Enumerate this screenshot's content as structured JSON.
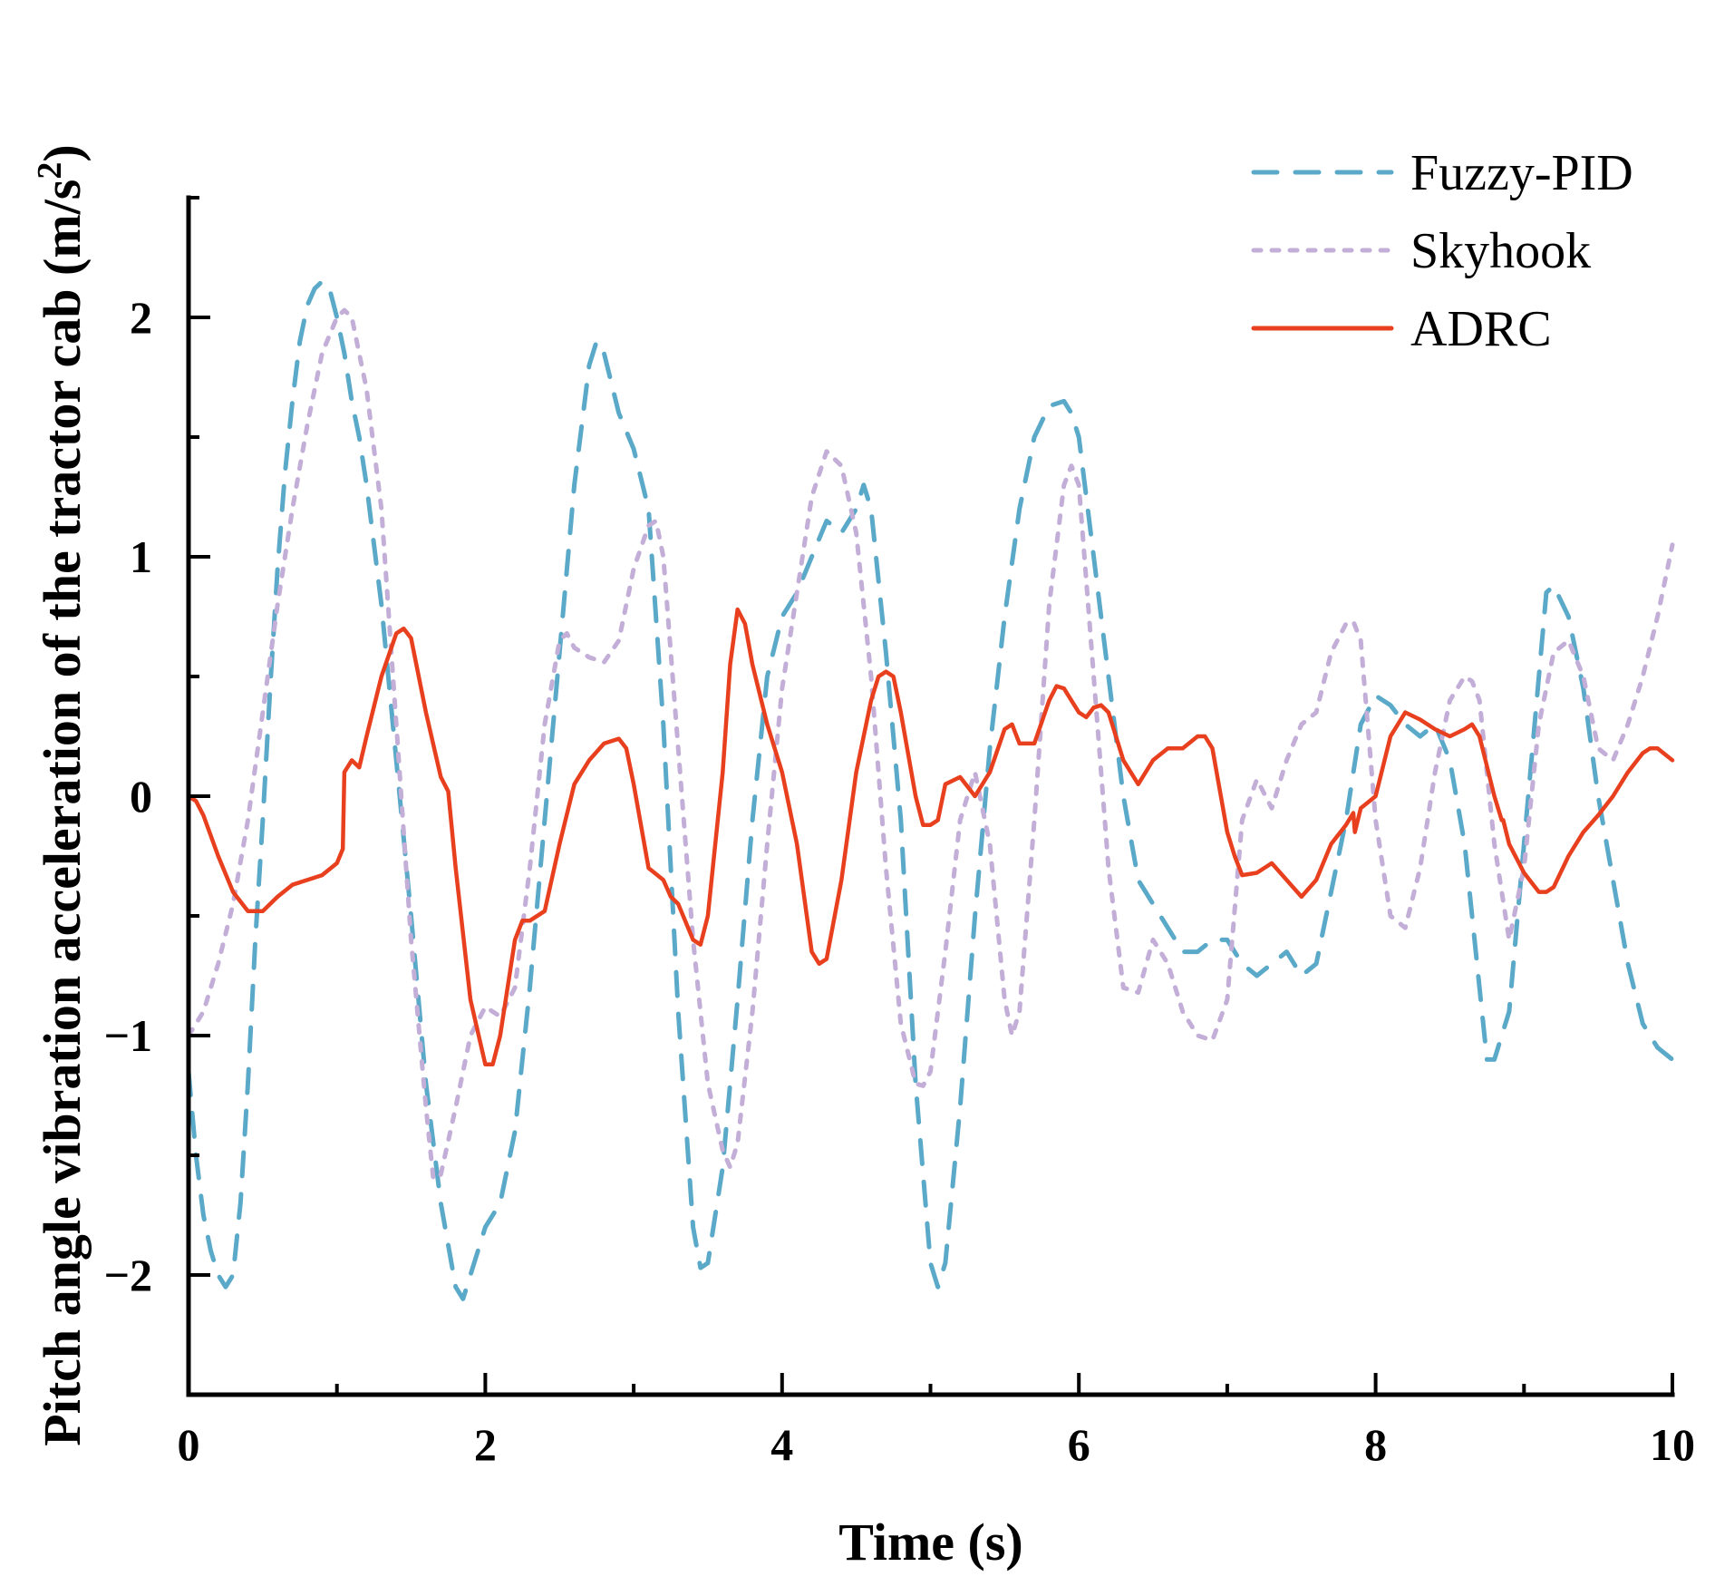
{
  "chart_data": {
    "type": "line",
    "title": "",
    "xlabel": "Time (s)",
    "ylabel_main": "Pitch angle vibration acceleration of the tractor cab (m/s",
    "ylabel_sup": "2",
    "ylabel_close": ")",
    "xlim": [
      0,
      10
    ],
    "ylim": [
      -2.5,
      2.5
    ],
    "xticks": [
      0,
      2,
      4,
      6,
      8,
      10
    ],
    "xtick_labels": [
      "0",
      "2",
      "4",
      "6",
      "8",
      "10"
    ],
    "xminor": [
      1,
      3,
      5,
      7,
      9
    ],
    "yticks": [
      -2,
      -1,
      0,
      1,
      2
    ],
    "ytick_labels": [
      "−2",
      "−1",
      "0",
      "1",
      "2"
    ],
    "yminor": [
      -2.5,
      -1.5,
      -0.5,
      0.5,
      1.5,
      2.5
    ],
    "grid": false,
    "legend_position": "top-right",
    "series": [
      {
        "name": "Fuzzy-PID",
        "color": "#5aa9c9",
        "style": "dashed",
        "x": [
          0,
          0.05,
          0.1,
          0.15,
          0.2,
          0.25,
          0.3,
          0.35,
          0.4,
          0.45,
          0.5,
          0.55,
          0.6,
          0.65,
          0.7,
          0.75,
          0.8,
          0.85,
          0.9,
          0.95,
          1.0,
          1.05,
          1.1,
          1.15,
          1.2,
          1.3,
          1.4,
          1.5,
          1.6,
          1.7,
          1.8,
          1.85,
          1.9,
          2.0,
          2.1,
          2.2,
          2.3,
          2.4,
          2.5,
          2.6,
          2.7,
          2.75,
          2.8,
          2.9,
          3.0,
          3.1,
          3.2,
          3.3,
          3.4,
          3.45,
          3.5,
          3.6,
          3.7,
          3.8,
          3.9,
          4.0,
          4.1,
          4.2,
          4.3,
          4.4,
          4.5,
          4.55,
          4.6,
          4.7,
          4.8,
          4.9,
          5.0,
          5.05,
          5.1,
          5.2,
          5.3,
          5.4,
          5.5,
          5.6,
          5.7,
          5.8,
          5.9,
          5.95,
          6.0,
          6.1,
          6.2,
          6.3,
          6.4,
          6.5,
          6.6,
          6.7,
          6.8,
          6.9,
          7.0,
          7.1,
          7.2,
          7.3,
          7.4,
          7.5,
          7.6,
          7.7,
          7.8,
          7.9,
          8.0,
          8.1,
          8.2,
          8.3,
          8.4,
          8.5,
          8.6,
          8.7,
          8.75,
          8.8,
          8.9,
          9.0,
          9.1,
          9.15,
          9.2,
          9.3,
          9.4,
          9.5,
          9.6,
          9.7,
          9.8,
          9.9,
          10.0
        ],
        "values": [
          -1.15,
          -1.5,
          -1.75,
          -1.9,
          -2.0,
          -2.05,
          -2.0,
          -1.7,
          -1.2,
          -0.6,
          -0.1,
          0.45,
          0.95,
          1.35,
          1.65,
          1.9,
          2.05,
          2.12,
          2.15,
          2.12,
          2.0,
          1.85,
          1.65,
          1.5,
          1.3,
          0.8,
          0.15,
          -0.5,
          -1.2,
          -1.7,
          -2.05,
          -2.1,
          -2.0,
          -1.8,
          -1.7,
          -1.4,
          -0.8,
          -0.1,
          0.6,
          1.3,
          1.8,
          1.9,
          1.85,
          1.6,
          1.45,
          1.2,
          0.3,
          -0.9,
          -1.8,
          -1.97,
          -1.95,
          -1.55,
          -0.85,
          -0.1,
          0.5,
          0.75,
          0.85,
          1.0,
          1.15,
          1.1,
          1.2,
          1.3,
          1.2,
          0.6,
          -0.1,
          -1.2,
          -1.95,
          -2.05,
          -1.95,
          -1.3,
          -0.5,
          0.2,
          0.75,
          1.2,
          1.5,
          1.63,
          1.65,
          1.6,
          1.5,
          1.0,
          0.5,
          0.0,
          -0.35,
          -0.45,
          -0.55,
          -0.65,
          -0.65,
          -0.6,
          -0.6,
          -0.7,
          -0.75,
          -0.7,
          -0.65,
          -0.75,
          -0.7,
          -0.4,
          -0.1,
          0.3,
          0.42,
          0.38,
          0.3,
          0.25,
          0.3,
          0.15,
          -0.2,
          -0.8,
          -1.1,
          -1.1,
          -0.9,
          -0.2,
          0.5,
          0.85,
          0.88,
          0.75,
          0.45,
          0.0,
          -0.35,
          -0.7,
          -0.95,
          -1.05,
          -1.1
        ]
      },
      {
        "name": "Skyhook",
        "color": "#c3aed8",
        "style": "dotted",
        "x": [
          0,
          0.1,
          0.2,
          0.3,
          0.4,
          0.5,
          0.6,
          0.7,
          0.8,
          0.9,
          1.0,
          1.05,
          1.1,
          1.2,
          1.3,
          1.4,
          1.5,
          1.6,
          1.65,
          1.7,
          1.8,
          1.9,
          2.0,
          2.1,
          2.2,
          2.3,
          2.4,
          2.5,
          2.55,
          2.6,
          2.7,
          2.8,
          2.9,
          3.0,
          3.1,
          3.15,
          3.2,
          3.3,
          3.4,
          3.5,
          3.6,
          3.65,
          3.7,
          3.8,
          3.9,
          4.0,
          4.1,
          4.2,
          4.3,
          4.4,
          4.5,
          4.6,
          4.7,
          4.8,
          4.9,
          4.95,
          5.0,
          5.1,
          5.2,
          5.3,
          5.4,
          5.5,
          5.55,
          5.6,
          5.7,
          5.8,
          5.9,
          5.95,
          6.0,
          6.1,
          6.2,
          6.3,
          6.4,
          6.5,
          6.6,
          6.7,
          6.8,
          6.9,
          7.0,
          7.1,
          7.2,
          7.3,
          7.4,
          7.5,
          7.6,
          7.7,
          7.8,
          7.85,
          7.9,
          8.0,
          8.1,
          8.2,
          8.3,
          8.4,
          8.5,
          8.6,
          8.65,
          8.7,
          8.8,
          8.9,
          9.0,
          9.1,
          9.2,
          9.3,
          9.4,
          9.5,
          9.6,
          9.7,
          9.8,
          9.9,
          10.0
        ],
        "values": [
          -1.0,
          -0.9,
          -0.7,
          -0.45,
          -0.1,
          0.35,
          0.8,
          1.2,
          1.55,
          1.85,
          2.0,
          2.03,
          2.0,
          1.7,
          1.2,
          0.3,
          -0.6,
          -1.3,
          -1.6,
          -1.58,
          -1.3,
          -1.0,
          -0.88,
          -0.92,
          -0.8,
          -0.3,
          0.3,
          0.65,
          0.68,
          0.62,
          0.58,
          0.56,
          0.65,
          0.95,
          1.13,
          1.15,
          1.0,
          0.2,
          -0.6,
          -1.2,
          -1.48,
          -1.55,
          -1.45,
          -0.9,
          -0.2,
          0.45,
          0.85,
          1.25,
          1.44,
          1.38,
          1.1,
          0.5,
          -0.3,
          -0.95,
          -1.2,
          -1.21,
          -1.15,
          -0.65,
          -0.1,
          0.1,
          -0.2,
          -0.85,
          -1.0,
          -0.9,
          -0.1,
          0.8,
          1.3,
          1.38,
          1.3,
          0.5,
          -0.3,
          -0.8,
          -0.82,
          -0.6,
          -0.7,
          -0.9,
          -1.0,
          -1.02,
          -0.85,
          -0.1,
          0.07,
          -0.05,
          0.15,
          0.3,
          0.35,
          0.6,
          0.72,
          0.73,
          0.65,
          -0.1,
          -0.5,
          -0.55,
          -0.3,
          0.1,
          0.4,
          0.5,
          0.48,
          0.4,
          -0.2,
          -0.6,
          -0.3,
          0.3,
          0.6,
          0.65,
          0.5,
          0.2,
          0.15,
          0.3,
          0.5,
          0.75,
          1.05
        ]
      },
      {
        "name": "ADRC",
        "color": "#e8401e",
        "style": "solid",
        "x": [
          0,
          0.05,
          0.1,
          0.2,
          0.3,
          0.4,
          0.5,
          0.6,
          0.7,
          0.8,
          0.9,
          1.0,
          1.04,
          1.05,
          1.1,
          1.15,
          1.2,
          1.3,
          1.4,
          1.45,
          1.5,
          1.6,
          1.7,
          1.75,
          1.8,
          1.9,
          2.0,
          2.05,
          2.1,
          2.2,
          2.25,
          2.3,
          2.4,
          2.5,
          2.6,
          2.7,
          2.8,
          2.9,
          2.95,
          3.0,
          3.1,
          3.2,
          3.25,
          3.3,
          3.4,
          3.45,
          3.5,
          3.6,
          3.65,
          3.7,
          3.75,
          3.8,
          3.9,
          4.0,
          4.1,
          4.2,
          4.25,
          4.3,
          4.4,
          4.5,
          4.6,
          4.65,
          4.7,
          4.75,
          4.8,
          4.9,
          4.95,
          5.0,
          5.05,
          5.1,
          5.2,
          5.3,
          5.4,
          5.5,
          5.55,
          5.6,
          5.7,
          5.8,
          5.85,
          5.9,
          5.95,
          6.0,
          6.05,
          6.1,
          6.15,
          6.2,
          6.3,
          6.4,
          6.5,
          6.6,
          6.7,
          6.8,
          6.85,
          6.9,
          7.0,
          7.05,
          7.1,
          7.2,
          7.3,
          7.4,
          7.5,
          7.6,
          7.7,
          7.8,
          7.85,
          7.86,
          7.9,
          8.0,
          8.1,
          8.2,
          8.3,
          8.4,
          8.5,
          8.6,
          8.65,
          8.7,
          8.8,
          8.85,
          8.86,
          8.9,
          9.0,
          9.1,
          9.15,
          9.2,
          9.3,
          9.4,
          9.5,
          9.6,
          9.7,
          9.8,
          9.85,
          9.9,
          10.0
        ],
        "values": [
          0.0,
          -0.02,
          -0.08,
          -0.25,
          -0.4,
          -0.48,
          -0.48,
          -0.42,
          -0.37,
          -0.35,
          -0.33,
          -0.28,
          -0.22,
          0.1,
          0.15,
          0.12,
          0.25,
          0.5,
          0.68,
          0.7,
          0.66,
          0.35,
          0.08,
          0.02,
          -0.3,
          -0.85,
          -1.12,
          -1.12,
          -1.0,
          -0.6,
          -0.52,
          -0.52,
          -0.48,
          -0.2,
          0.05,
          0.15,
          0.22,
          0.24,
          0.2,
          0.05,
          -0.3,
          -0.35,
          -0.42,
          -0.45,
          -0.6,
          -0.62,
          -0.5,
          0.1,
          0.55,
          0.78,
          0.72,
          0.55,
          0.3,
          0.1,
          -0.2,
          -0.65,
          -0.7,
          -0.68,
          -0.35,
          0.1,
          0.4,
          0.5,
          0.52,
          0.5,
          0.35,
          0.0,
          -0.12,
          -0.12,
          -0.1,
          0.05,
          0.08,
          0.0,
          0.1,
          0.28,
          0.3,
          0.22,
          0.22,
          0.4,
          0.46,
          0.45,
          0.4,
          0.35,
          0.33,
          0.37,
          0.38,
          0.35,
          0.15,
          0.05,
          0.15,
          0.2,
          0.2,
          0.25,
          0.25,
          0.2,
          -0.15,
          -0.25,
          -0.33,
          -0.32,
          -0.28,
          -0.35,
          -0.42,
          -0.35,
          -0.2,
          -0.12,
          -0.07,
          -0.15,
          -0.05,
          0.0,
          0.25,
          0.35,
          0.32,
          0.28,
          0.25,
          0.28,
          0.3,
          0.25,
          0.0,
          -0.1,
          -0.1,
          -0.2,
          -0.32,
          -0.4,
          -0.4,
          -0.38,
          -0.25,
          -0.15,
          -0.08,
          0.0,
          0.1,
          0.18,
          0.2,
          0.2,
          0.15
        ]
      }
    ]
  }
}
